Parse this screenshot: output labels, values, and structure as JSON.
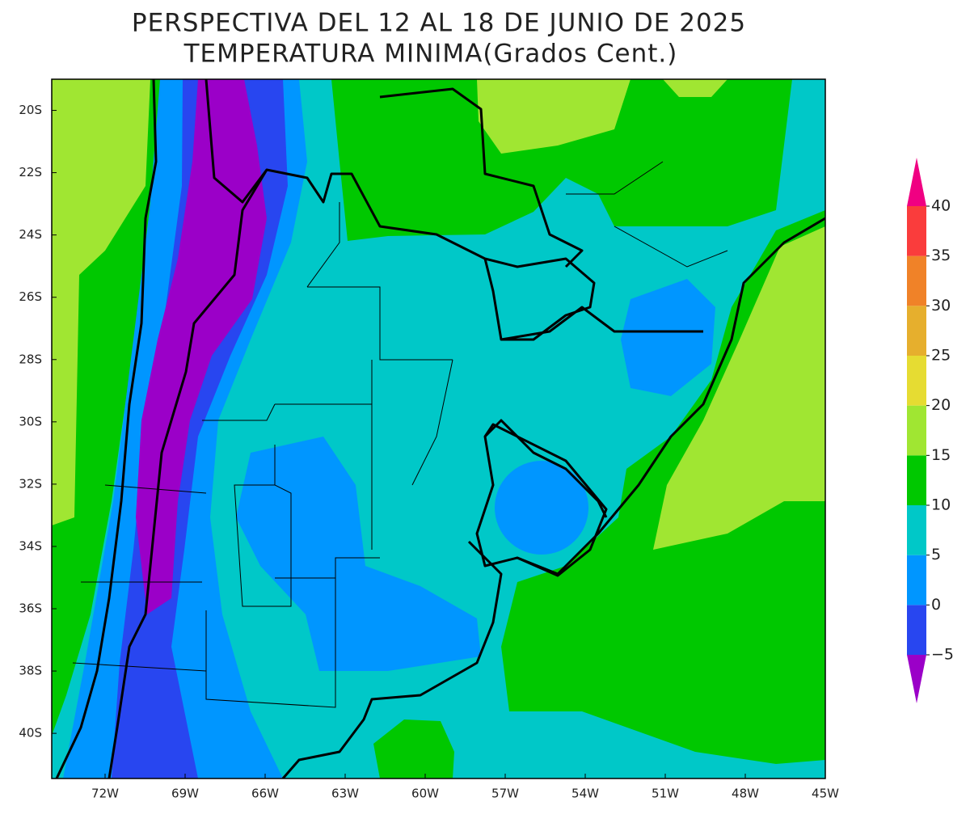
{
  "title": "PERSPECTIVA DEL 12 AL 18 DE JUNIO DE 2025",
  "subtitle": "TEMPERATURA MINIMA(Grados Cent.)",
  "map": {
    "xlim": [
      -74,
      -45
    ],
    "ylim": [
      -41.45,
      -19
    ],
    "yticks": [
      {
        "value": -20,
        "label": "20S"
      },
      {
        "value": -22,
        "label": "22S"
      },
      {
        "value": -24,
        "label": "24S"
      },
      {
        "value": -26,
        "label": "26S"
      },
      {
        "value": -28,
        "label": "28S"
      },
      {
        "value": -30,
        "label": "30S"
      },
      {
        "value": -32,
        "label": "32S"
      },
      {
        "value": -34,
        "label": "34S"
      },
      {
        "value": -36,
        "label": "36S"
      },
      {
        "value": -38,
        "label": "38S"
      },
      {
        "value": -40,
        "label": "40S"
      }
    ],
    "xticks": [
      {
        "value": -72,
        "label": "72W"
      },
      {
        "value": -69,
        "label": "69W"
      },
      {
        "value": -66,
        "label": "66W"
      },
      {
        "value": -63,
        "label": "63W"
      },
      {
        "value": -60,
        "label": "60W"
      },
      {
        "value": -57,
        "label": "57W"
      },
      {
        "value": -54,
        "label": "54W"
      },
      {
        "value": -51,
        "label": "51W"
      },
      {
        "value": -48,
        "label": "48W"
      },
      {
        "value": -45,
        "label": "45W"
      }
    ]
  },
  "colorbar": {
    "levels": [
      {
        "value": -5,
        "label": "−5"
      },
      0,
      5,
      10,
      15,
      20,
      25,
      30,
      35,
      40
    ],
    "colors": [
      "#9b00c8",
      "#2846f0",
      "#0096ff",
      "#00c8c8",
      "#00c800",
      "#a0e632",
      "#e6dc32",
      "#e6af2d",
      "#f08228",
      "#fa3c3c",
      "#f00082"
    ]
  }
}
